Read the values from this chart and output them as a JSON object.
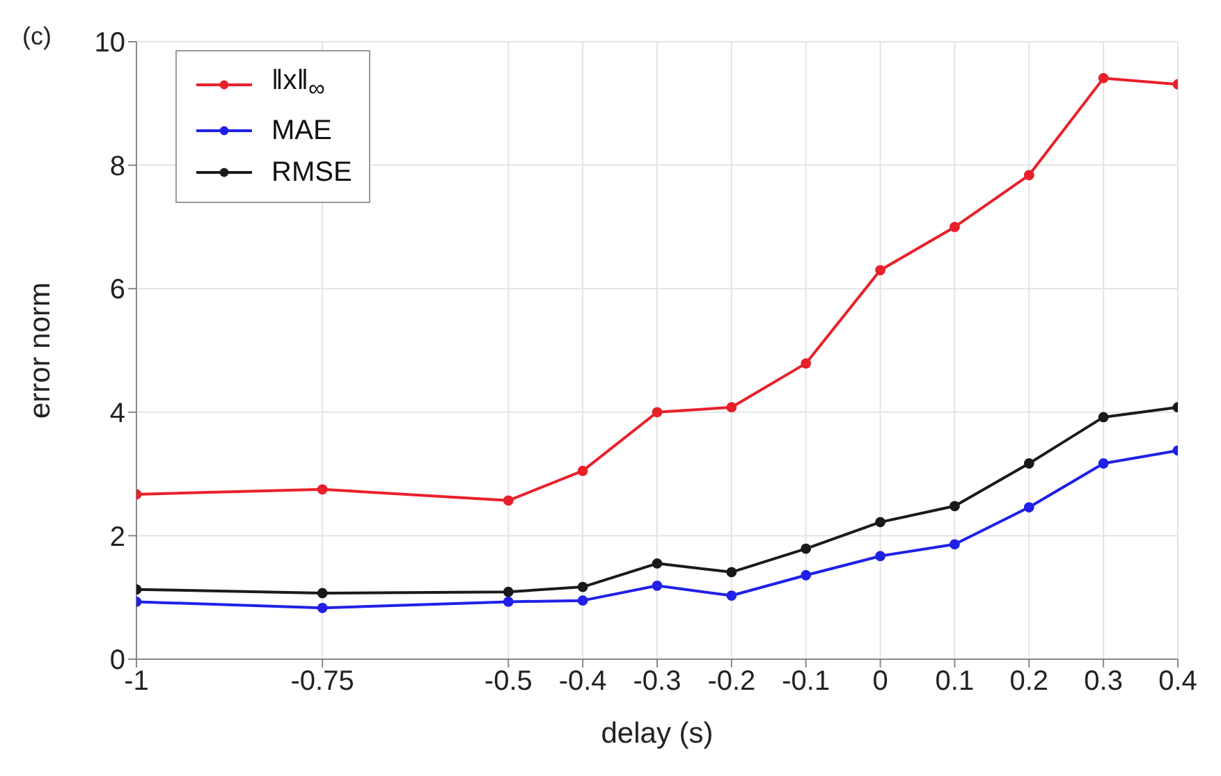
{
  "chart_data": {
    "type": "line",
    "xlabel": "delay (s)",
    "ylabel": "error norm",
    "annotations": [
      "(c)"
    ],
    "x": [
      -1,
      -0.75,
      -0.5,
      -0.4,
      -0.3,
      -0.2,
      -0.1,
      0,
      0.1,
      0.2,
      0.3,
      0.4
    ],
    "series": [
      {
        "name": "‖x‖$_{∞}$",
        "color": "#e8202a",
        "values": [
          2.67,
          2.75,
          2.57,
          3.05,
          4.0,
          4.08,
          4.79,
          6.3,
          7.0,
          7.84,
          9.41,
          9.31
        ]
      },
      {
        "name": "MAE",
        "color": "#2020e8",
        "values": [
          0.93,
          0.83,
          0.93,
          0.95,
          1.19,
          1.03,
          1.36,
          1.67,
          1.86,
          2.46,
          3.17,
          3.38
        ]
      },
      {
        "name": "RMSE",
        "color": "#1a1a1a",
        "values": [
          1.13,
          1.07,
          1.09,
          1.17,
          1.55,
          1.41,
          1.79,
          2.22,
          2.48,
          3.17,
          3.92,
          4.08
        ]
      }
    ],
    "xlim": [
      -1,
      0.4
    ],
    "xticks": [
      -1,
      -0.75,
      -0.5,
      -0.4,
      -0.3,
      -0.2,
      -0.1,
      0,
      0.1,
      0.2,
      0.3,
      0.4
    ],
    "ylim": [
      0,
      10
    ],
    "yticks": [
      0,
      2,
      4,
      6,
      8,
      10
    ],
    "grid": true,
    "legend": "top left",
    "marker": "circle",
    "line_style": "solid"
  }
}
